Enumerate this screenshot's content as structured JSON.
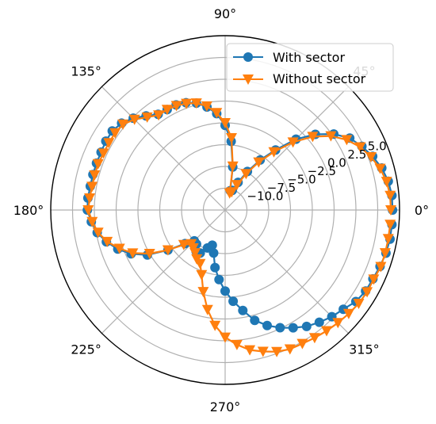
{
  "chart_data": {
    "type": "line",
    "subtype": "polar",
    "title": "",
    "theta_unit": "degrees",
    "theta_tick_labels": [
      "0°",
      "45°",
      "90°",
      "135°",
      "180°",
      "225°",
      "270°",
      "315°"
    ],
    "theta_ticks": [
      0,
      45,
      90,
      135,
      180,
      225,
      270,
      315
    ],
    "r_ticks": [
      -10.0,
      -7.5,
      -5.0,
      -2.5,
      0.0,
      2.5,
      5.0
    ],
    "r_tick_labels": [
      "−10.0",
      "−7.5",
      "−5.0",
      "−2.5",
      "0.0",
      "2.5",
      "5.0"
    ],
    "r_tick_label_angle_deg": 22.5,
    "rlim": [
      -12.5,
      7.5
    ],
    "grid": true,
    "legend": {
      "position": "upper right"
    },
    "series": [
      {
        "name": "With sector",
        "color": "#1f77b4",
        "marker": "circle",
        "theta": [
          0,
          5,
          10,
          15,
          20,
          25,
          30,
          35,
          40,
          45,
          50,
          55,
          60,
          65,
          70,
          75,
          80,
          85,
          90,
          95,
          100,
          105,
          110,
          115,
          120,
          125,
          130,
          135,
          140,
          145,
          150,
          155,
          160,
          165,
          170,
          175,
          180,
          185,
          190,
          195,
          200,
          205,
          210,
          215,
          220,
          225,
          230,
          235,
          240,
          245,
          250,
          255,
          260,
          265,
          270,
          275,
          280,
          285,
          290,
          295,
          300,
          305,
          310,
          315,
          320,
          325,
          330,
          335,
          340,
          345,
          350,
          355
        ],
        "r": [
          6.7,
          6.7,
          6.5,
          6.1,
          5.5,
          4.8,
          4.0,
          2.7,
          1.0,
          -1.0,
          -3.5,
          -5.5,
          -7.4,
          -9.0,
          -10.1,
          -10.2,
          -7.5,
          -4.6,
          -2.8,
          -1.4,
          -0.5,
          0.2,
          0.6,
          0.8,
          0.8,
          0.9,
          1.6,
          2.4,
          3.0,
          3.3,
          3.3,
          3.2,
          3.2,
          3.2,
          3.2,
          3.3,
          3.3,
          2.9,
          2.4,
          1.6,
          0.6,
          -0.6,
          -2.2,
          -4.5,
          -6.5,
          -7.5,
          -7.4,
          -6.7,
          -6.8,
          -7.7,
          -8.2,
          -7.4,
          -5.8,
          -4.5,
          -3.2,
          -2.0,
          -0.8,
          0.6,
          1.6,
          2.4,
          3.1,
          3.8,
          4.3,
          4.8,
          5.2,
          5.8,
          6.1,
          6.2,
          6.4,
          6.6,
          6.7,
          6.7
        ]
      },
      {
        "name": "Without sector",
        "color": "#ff7f0e",
        "marker": "triangle_down",
        "theta": [
          0,
          5,
          10,
          15,
          20,
          25,
          30,
          35,
          40,
          45,
          50,
          55,
          60,
          65,
          70,
          75,
          80,
          85,
          90,
          95,
          100,
          105,
          110,
          115,
          120,
          125,
          130,
          135,
          140,
          145,
          150,
          155,
          160,
          165,
          170,
          175,
          180,
          185,
          190,
          195,
          200,
          205,
          210,
          215,
          220,
          225,
          230,
          235,
          240,
          245,
          250,
          255,
          260,
          265,
          270,
          275,
          280,
          285,
          290,
          295,
          300,
          305,
          310,
          315,
          320,
          325,
          330,
          335,
          340,
          345,
          350,
          355
        ],
        "r": [
          6.5,
          6.5,
          6.3,
          5.9,
          5.3,
          4.6,
          3.6,
          2.3,
          0.6,
          -1.5,
          -3.8,
          -5.8,
          -7.7,
          -9.3,
          -10.3,
          -10.5,
          -7.4,
          -4.2,
          -2.5,
          -1.3,
          -0.4,
          0.2,
          0.5,
          0.7,
          0.8,
          0.8,
          1.4,
          2.2,
          2.8,
          2.9,
          2.9,
          2.9,
          3.0,
          3.0,
          3.0,
          3.1,
          3.2,
          2.8,
          2.3,
          1.5,
          0.4,
          -0.8,
          -2.5,
          -4.5,
          -6.3,
          -7.0,
          -6.8,
          -6.5,
          -6.0,
          -5.7,
          -4.6,
          -2.8,
          -0.9,
          0.8,
          2.1,
          3.0,
          3.8,
          4.3,
          4.8,
          5.1,
          5.2,
          5.4,
          5.6,
          5.8,
          6.0,
          6.2,
          6.3,
          6.3,
          6.5,
          6.5,
          6.5,
          6.5
        ]
      }
    ]
  }
}
